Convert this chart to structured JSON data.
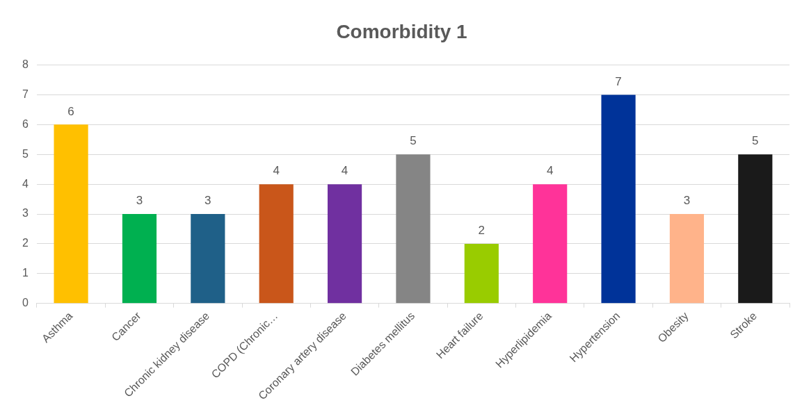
{
  "chart_data": {
    "type": "bar",
    "title": "Comorbidity 1",
    "categories": [
      "Asthma",
      "Cancer",
      "Chronic kidney disease",
      "COPD (Chronic…",
      "Coronary artery disease",
      "Diabetes mellitus",
      "Heart failure",
      "Hyperlipidemia",
      "Hypertension",
      "Obesity",
      "Stroke"
    ],
    "values": [
      6,
      3,
      3,
      4,
      4,
      5,
      2,
      4,
      7,
      3,
      5
    ],
    "colors": [
      "#ffc000",
      "#00b050",
      "#1f6088",
      "#c9561a",
      "#7030a0",
      "#858585",
      "#99cc00",
      "#ff3399",
      "#003399",
      "#ffb38a",
      "#1a1a1a"
    ],
    "ylim": [
      0,
      8
    ],
    "yticks": [
      0,
      1,
      2,
      3,
      4,
      5,
      6,
      7,
      8
    ],
    "grid": "y",
    "legend": false,
    "data_labels": true
  }
}
